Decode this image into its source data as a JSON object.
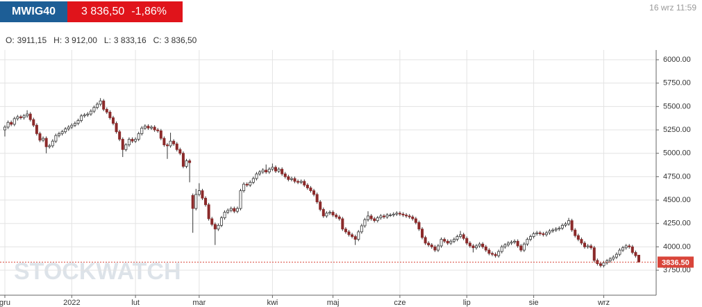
{
  "header": {
    "symbol": "MWIG40",
    "price": "3 836,50",
    "change": "-1,86%",
    "time": "16 wrz 11:59",
    "ohlc": [
      {
        "label": "O:",
        "value": "3911,15"
      },
      {
        "label": "H:",
        "value": "3 912,00"
      },
      {
        "label": "L:",
        "value": "3 833,16"
      },
      {
        "label": "C:",
        "value": "3 836,50"
      }
    ]
  },
  "watermark": "STOCKWATCH",
  "chart_data": {
    "type": "candlestick",
    "categories": [
      "gru",
      null,
      null,
      null,
      null,
      null,
      null,
      null,
      null,
      null,
      null,
      null,
      null,
      null,
      null,
      null,
      null,
      null,
      null,
      null,
      null,
      "2022",
      null,
      null,
      null,
      null,
      null,
      null,
      null,
      null,
      null,
      null,
      null,
      null,
      null,
      null,
      null,
      null,
      null,
      null,
      null,
      "lut",
      null,
      null,
      null,
      null,
      null,
      null,
      null,
      null,
      null,
      null,
      null,
      null,
      null,
      null,
      null,
      null,
      null,
      null,
      null,
      "mar",
      null,
      null,
      null,
      null,
      null,
      null,
      null,
      null,
      null,
      null,
      null,
      null,
      null,
      null,
      null,
      null,
      null,
      null,
      null,
      null,
      null,
      null,
      "kwi",
      null,
      null,
      null,
      null,
      null,
      null,
      null,
      null,
      null,
      null,
      null,
      null,
      null,
      null,
      null,
      null,
      null,
      null,
      "maj",
      null,
      null,
      null,
      null,
      null,
      null,
      null,
      null,
      null,
      null,
      null,
      null,
      null,
      null,
      null,
      null,
      null,
      null,
      null,
      null,
      "cze",
      null,
      null,
      null,
      null,
      null,
      null,
      null,
      null,
      null,
      null,
      null,
      null,
      null,
      null,
      null,
      null,
      null,
      null,
      null,
      null,
      "lip",
      null,
      null,
      null,
      null,
      null,
      null,
      null,
      null,
      null,
      null,
      null,
      null,
      null,
      null,
      null,
      null,
      null,
      null,
      null,
      null,
      "sie",
      null,
      null,
      null,
      null,
      null,
      null,
      null,
      null,
      null,
      null,
      null,
      null,
      null,
      null,
      null,
      null,
      null,
      null,
      null,
      null,
      null,
      "wrz",
      null,
      null,
      null,
      null,
      null,
      null,
      null,
      null,
      null,
      null,
      null
    ],
    "open": [
      5250,
      5280,
      5330,
      5310,
      5370,
      5390,
      5380,
      5400,
      5420,
      5360,
      5300,
      5210,
      5140,
      5160,
      5070,
      5080,
      5130,
      5190,
      5210,
      5230,
      5260,
      5280,
      5300,
      5320,
      5350,
      5400,
      5410,
      5420,
      5450,
      5490,
      5525,
      5560,
      5470,
      5440,
      5380,
      5320,
      5230,
      5150,
      5040,
      5090,
      5150,
      5130,
      5150,
      5210,
      5270,
      5290,
      5270,
      5280,
      5250,
      5240,
      5160,
      5090,
      5080,
      5130,
      5100,
      5040,
      5000,
      4860,
      4920,
      4550,
      4410,
      4560,
      4600,
      4520,
      4450,
      4300,
      4240,
      4190,
      4230,
      4310,
      4370,
      4390,
      4410,
      4380,
      4410,
      4600,
      4670,
      4660,
      4690,
      4730,
      4780,
      4800,
      4820,
      4800,
      4830,
      4850,
      4810,
      4830,
      4780,
      4750,
      4720,
      4730,
      4700,
      4690,
      4700,
      4660,
      4630,
      4600,
      4560,
      4480,
      4400,
      4330,
      4360,
      4370,
      4340,
      4320,
      4300,
      4190,
      4160,
      4130,
      4110,
      4080,
      4160,
      4225,
      4290,
      4330,
      4300,
      4280,
      4310,
      4330,
      4320,
      4340,
      4340,
      4350,
      4360,
      4350,
      4340,
      4330,
      4320,
      4300,
      4260,
      4190,
      4100,
      4040,
      4020,
      4000,
      3965,
      4010,
      4080,
      4060,
      4040,
      4060,
      4080,
      4110,
      4130,
      4090,
      4040,
      4010,
      3990,
      4010,
      4030,
      4000,
      3965,
      3930,
      3920,
      3905,
      3950,
      4000,
      4020,
      4040,
      4050,
      4060,
      4010,
      3965,
      4030,
      4080,
      4110,
      4140,
      4150,
      4140,
      4130,
      4150,
      4170,
      4180,
      4190,
      4200,
      4230,
      4245,
      4280,
      4180,
      4120,
      4080,
      4040,
      4000,
      4010,
      3990,
      3855,
      3820,
      3800,
      3830,
      3850,
      3870,
      3890,
      3920,
      3965,
      3990,
      4010,
      4000,
      3940,
      3911.15
    ],
    "high": [
      5300,
      5350,
      5350,
      5390,
      5410,
      5410,
      5420,
      5460,
      5440,
      5380,
      5320,
      5230,
      5180,
      5180,
      5100,
      5150,
      5210,
      5230,
      5250,
      5280,
      5300,
      5320,
      5340,
      5370,
      5420,
      5430,
      5440,
      5470,
      5510,
      5545,
      5590,
      5580,
      5490,
      5460,
      5400,
      5340,
      5250,
      5170,
      5110,
      5170,
      5170,
      5170,
      5230,
      5290,
      5310,
      5310,
      5300,
      5300,
      5270,
      5260,
      5180,
      5110,
      5220,
      5150,
      5120,
      5060,
      5020,
      4940,
      4940,
      4570,
      4620,
      4680,
      4620,
      4540,
      4470,
      4320,
      4260,
      4250,
      4330,
      4390,
      4410,
      4430,
      4430,
      4430,
      4620,
      4690,
      4690,
      4710,
      4750,
      4800,
      4820,
      4840,
      4880,
      4850,
      4890,
      4870,
      4850,
      4850,
      4800,
      4770,
      4750,
      4750,
      4720,
      4720,
      4720,
      4680,
      4650,
      4620,
      4580,
      4500,
      4420,
      4380,
      4390,
      4390,
      4360,
      4340,
      4320,
      4210,
      4180,
      4150,
      4130,
      4180,
      4245,
      4310,
      4380,
      4350,
      4320,
      4330,
      4350,
      4350,
      4360,
      4360,
      4370,
      4380,
      4380,
      4370,
      4360,
      4350,
      4340,
      4320,
      4280,
      4210,
      4120,
      4060,
      4040,
      4020,
      4030,
      4100,
      4100,
      4080,
      4080,
      4100,
      4130,
      4170,
      4150,
      4110,
      4060,
      4030,
      4030,
      4050,
      4050,
      4020,
      3985,
      3950,
      3940,
      3970,
      4020,
      4040,
      4060,
      4070,
      4080,
      4080,
      4030,
      4050,
      4100,
      4130,
      4160,
      4170,
      4170,
      4160,
      4170,
      4190,
      4200,
      4210,
      4220,
      4250,
      4265,
      4310,
      4300,
      4200,
      4140,
      4100,
      4060,
      4030,
      4030,
      4010,
      3875,
      3840,
      3850,
      3870,
      3890,
      3910,
      3940,
      3985,
      4010,
      4030,
      4030,
      4020,
      3960,
      3912
    ],
    "low": [
      5180,
      5260,
      5290,
      5290,
      5350,
      5360,
      5360,
      5380,
      5340,
      5280,
      5190,
      5120,
      5120,
      5000,
      5050,
      5060,
      5110,
      5170,
      5190,
      5210,
      5240,
      5260,
      5280,
      5300,
      5330,
      5380,
      5390,
      5400,
      5430,
      5470,
      5505,
      5450,
      5420,
      5360,
      5300,
      5210,
      5130,
      4960,
      5020,
      5070,
      5110,
      5110,
      5130,
      5190,
      5250,
      5250,
      5250,
      5230,
      5220,
      5140,
      5070,
      4940,
      5060,
      5080,
      5020,
      4980,
      4840,
      4840,
      4690,
      4150,
      4390,
      4540,
      4500,
      4430,
      4280,
      4220,
      4020,
      4170,
      4210,
      4290,
      4350,
      4370,
      4360,
      4360,
      4390,
      4580,
      4640,
      4640,
      4670,
      4710,
      4760,
      4780,
      4780,
      4780,
      4810,
      4790,
      4790,
      4760,
      4730,
      4700,
      4700,
      4680,
      4670,
      4670,
      4640,
      4610,
      4580,
      4540,
      4460,
      4380,
      4310,
      4310,
      4340,
      4320,
      4300,
      4280,
      4170,
      4140,
      4110,
      4090,
      4020,
      4060,
      4140,
      4205,
      4270,
      4280,
      4260,
      4260,
      4290,
      4300,
      4300,
      4320,
      4320,
      4330,
      4330,
      4320,
      4310,
      4300,
      4280,
      4240,
      4170,
      4080,
      4020,
      4000,
      3980,
      3945,
      3945,
      3990,
      4040,
      4020,
      4020,
      4040,
      4060,
      4090,
      4070,
      4020,
      3990,
      3940,
      3970,
      3990,
      3980,
      3945,
      3910,
      3900,
      3885,
      3885,
      3930,
      3980,
      4000,
      4020,
      4030,
      3990,
      3945,
      3945,
      4010,
      4060,
      4090,
      4120,
      4120,
      4110,
      4110,
      4130,
      4150,
      4160,
      4170,
      4180,
      4210,
      4225,
      4160,
      4100,
      4060,
      4020,
      3980,
      3980,
      3970,
      3835,
      3800,
      3780,
      3780,
      3810,
      3830,
      3850,
      3870,
      3900,
      3945,
      3970,
      3980,
      3920,
      3885,
      3833.16
    ],
    "close": [
      5280,
      5330,
      5310,
      5370,
      5390,
      5380,
      5400,
      5420,
      5360,
      5300,
      5210,
      5140,
      5160,
      5070,
      5080,
      5130,
      5190,
      5210,
      5230,
      5260,
      5280,
      5300,
      5320,
      5350,
      5400,
      5410,
      5420,
      5450,
      5490,
      5525,
      5560,
      5470,
      5440,
      5380,
      5320,
      5230,
      5150,
      5040,
      5090,
      5150,
      5130,
      5150,
      5210,
      5270,
      5290,
      5270,
      5280,
      5250,
      5240,
      5160,
      5090,
      5080,
      5130,
      5100,
      5040,
      5000,
      4860,
      4920,
      4900,
      4410,
      4560,
      4600,
      4520,
      4450,
      4300,
      4240,
      4190,
      4230,
      4310,
      4370,
      4390,
      4410,
      4380,
      4410,
      4600,
      4670,
      4660,
      4690,
      4730,
      4780,
      4800,
      4820,
      4800,
      4830,
      4850,
      4810,
      4830,
      4780,
      4750,
      4720,
      4730,
      4700,
      4690,
      4700,
      4660,
      4630,
      4600,
      4560,
      4480,
      4400,
      4330,
      4360,
      4370,
      4340,
      4320,
      4300,
      4190,
      4160,
      4130,
      4110,
      4080,
      4160,
      4225,
      4290,
      4330,
      4300,
      4280,
      4310,
      4330,
      4320,
      4340,
      4340,
      4350,
      4360,
      4350,
      4340,
      4330,
      4320,
      4300,
      4260,
      4190,
      4100,
      4040,
      4020,
      4000,
      3965,
      4010,
      4080,
      4060,
      4040,
      4060,
      4080,
      4110,
      4130,
      4090,
      4040,
      4010,
      3990,
      4010,
      4030,
      4000,
      3965,
      3930,
      3920,
      3905,
      3950,
      4000,
      4020,
      4040,
      4050,
      4060,
      4010,
      3965,
      4030,
      4080,
      4110,
      4140,
      4150,
      4140,
      4130,
      4150,
      4170,
      4180,
      4190,
      4200,
      4230,
      4245,
      4280,
      4180,
      4120,
      4080,
      4040,
      4000,
      4010,
      3990,
      3855,
      3820,
      3800,
      3830,
      3850,
      3870,
      3890,
      3920,
      3965,
      3990,
      4010,
      4000,
      3940,
      3905,
      3836.5
    ],
    "up_color": "#ffffff",
    "down_color": "#8b2a2a",
    "outline_color": "#333333",
    "ylim": [
      3483,
      6104
    ],
    "yticks": [
      {
        "value": 3750,
        "label": "3750.00"
      },
      {
        "value": 4000,
        "label": "4000.00"
      },
      {
        "value": 4250,
        "label": "4250.00"
      },
      {
        "value": 4500,
        "label": "4500.00"
      },
      {
        "value": 4750,
        "label": "4750.00"
      },
      {
        "value": 5000,
        "label": "5000.00"
      },
      {
        "value": 5250,
        "label": "5250.00"
      },
      {
        "value": 5500,
        "label": "5500.00"
      },
      {
        "value": 5750,
        "label": "5750.00"
      },
      {
        "value": 6000,
        "label": "6000.00"
      }
    ],
    "grid": true,
    "last_price": {
      "value": 3836.5,
      "label": "3836.50",
      "color": "#d9453a"
    }
  }
}
